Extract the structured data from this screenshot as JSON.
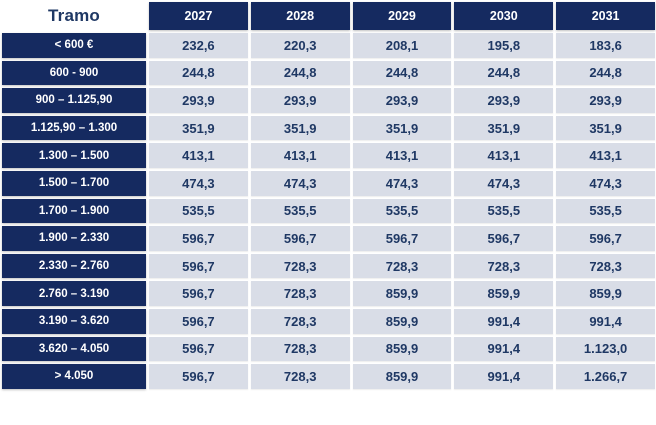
{
  "colors": {
    "navy_header": "#152a60",
    "cell_background": "#d9dde7",
    "value_text": "#1f3864",
    "header_text": "#ffffff",
    "page_background": "#ffffff"
  },
  "chart_data": {
    "type": "table",
    "columns": [
      "Tramo",
      "2027",
      "2028",
      "2029",
      "2030",
      "2031"
    ],
    "rows": [
      [
        "< 600 €",
        "232,6",
        "220,3",
        "208,1",
        "195,8",
        "183,6"
      ],
      [
        "600 - 900",
        "244,8",
        "244,8",
        "244,8",
        "244,8",
        "244,8"
      ],
      [
        "900 – 1.125,90",
        "293,9",
        "293,9",
        "293,9",
        "293,9",
        "293,9"
      ],
      [
        "1.125,90 – 1.300",
        "351,9",
        "351,9",
        "351,9",
        "351,9",
        "351,9"
      ],
      [
        "1.300 – 1.500",
        "413,1",
        "413,1",
        "413,1",
        "413,1",
        "413,1"
      ],
      [
        "1.500 – 1.700",
        "474,3",
        "474,3",
        "474,3",
        "474,3",
        "474,3"
      ],
      [
        "1.700 – 1.900",
        "535,5",
        "535,5",
        "535,5",
        "535,5",
        "535,5"
      ],
      [
        "1.900 – 2.330",
        "596,7",
        "596,7",
        "596,7",
        "596,7",
        "596,7"
      ],
      [
        "2.330 – 2.760",
        "596,7",
        "728,3",
        "728,3",
        "728,3",
        "728,3"
      ],
      [
        "2.760 – 3.190",
        "596,7",
        "728,3",
        "859,9",
        "859,9",
        "859,9"
      ],
      [
        "3.190 – 3.620",
        "596,7",
        "728,3",
        "859,9",
        "991,4",
        "991,4"
      ],
      [
        "3.620 – 4.050",
        "596,7",
        "728,3",
        "859,9",
        "991,4",
        "1.123,0"
      ],
      [
        "> 4.050",
        "596,7",
        "728,3",
        "859,9",
        "991,4",
        "1.266,7"
      ]
    ]
  }
}
